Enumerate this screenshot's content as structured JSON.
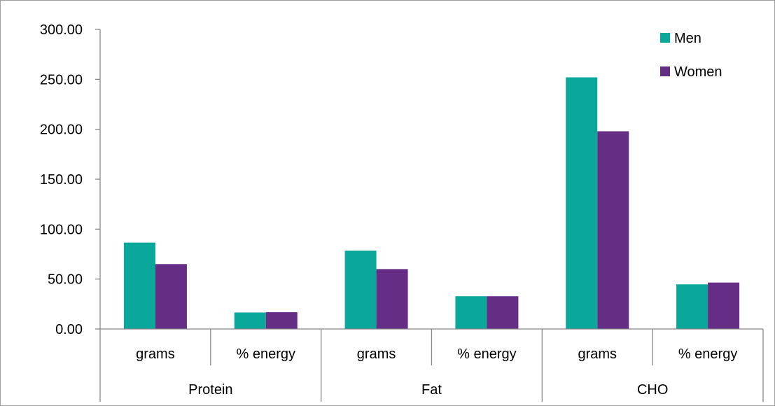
{
  "chart_data": {
    "type": "bar",
    "title": "",
    "xlabel": "",
    "ylabel": "",
    "ylim": [
      0,
      300
    ],
    "yticks": [
      "0.00",
      "50.00",
      "100.00",
      "150.00",
      "200.00",
      "250.00",
      "300.00"
    ],
    "grid": false,
    "legend_position": "top-right",
    "groups": [
      {
        "label": "Protein",
        "categories": [
          "grams",
          "% energy"
        ]
      },
      {
        "label": "Fat",
        "categories": [
          "grams",
          "% energy"
        ]
      },
      {
        "label": "CHO",
        "categories": [
          "grams",
          "% energy"
        ]
      }
    ],
    "series": [
      {
        "name": "Men",
        "color": "#0aa89a",
        "values": [
          86.5,
          16.5,
          78.5,
          32.8,
          252.0,
          44.7
        ]
      },
      {
        "name": "Women",
        "color": "#662d87",
        "values": [
          65.0,
          16.8,
          60.0,
          32.8,
          198.0,
          46.5
        ]
      }
    ]
  }
}
